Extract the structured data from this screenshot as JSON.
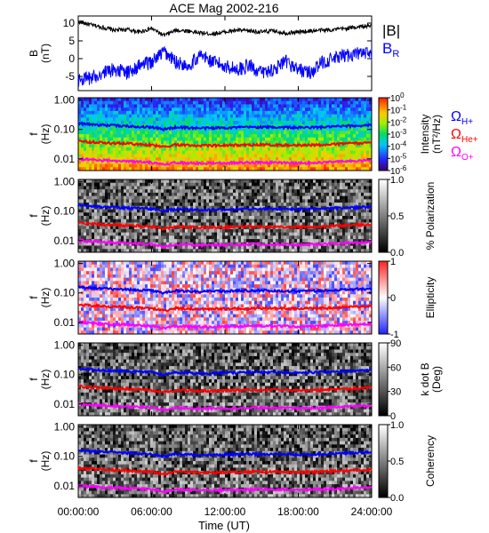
{
  "chart_data": {
    "type": "line",
    "title": "ACE Mag 2002-216",
    "xlabel": "Time (UT)",
    "x_ticks": [
      "00:00:00",
      "06:00:00",
      "12:00:00",
      "18:00:00",
      "24:00:00"
    ],
    "xlim_hours": [
      0,
      24
    ],
    "panels": [
      {
        "name": "field",
        "ylabel": [
          "B",
          "(nT)"
        ],
        "ylim": [
          -9,
          12
        ],
        "y_ticks": [
          "10",
          "5",
          "0",
          "-5"
        ],
        "y_tick_values": [
          10,
          5,
          0,
          -5
        ],
        "series": [
          {
            "name": "|B|",
            "color": "#000000",
            "x": [
              0,
              1,
              2,
              3,
              4,
              5,
              6,
              7,
              8,
              9,
              10,
              11,
              12,
              13,
              14,
              15,
              16,
              17,
              18,
              19,
              20,
              21,
              22,
              23,
              24
            ],
            "values": [
              10.5,
              9.5,
              8.8,
              8.0,
              8.2,
              7.5,
              8.5,
              6.5,
              8.0,
              7.8,
              7.2,
              7.0,
              7.5,
              8.0,
              7.8,
              7.5,
              7.8,
              7.2,
              7.5,
              7.8,
              8.0,
              8.2,
              8.5,
              9.0,
              9.2
            ]
          },
          {
            "name": "B_R",
            "label_main": "B",
            "label_sub": "R",
            "color": "#0000ff",
            "x": [
              0,
              1,
              2,
              3,
              4,
              5,
              6,
              7,
              8,
              9,
              10,
              11,
              12,
              13,
              14,
              15,
              16,
              17,
              18,
              19,
              20,
              21,
              22,
              23,
              24
            ],
            "values": [
              -6,
              -5.5,
              -4,
              -3,
              -4,
              -2,
              -1,
              2,
              -1,
              -2,
              1,
              -1,
              -2,
              -3,
              -2,
              -4,
              -3,
              -1,
              -3,
              -4,
              -1,
              0,
              1,
              1.5,
              1
            ]
          }
        ]
      },
      {
        "name": "intensity",
        "ylabel": [
          "f",
          "(Hz)"
        ],
        "colorbar_label": [
          "Intensity",
          "(nT²/Hz)"
        ],
        "colorbar_ticks": [
          {
            "base": "10",
            "exp": "0"
          },
          {
            "base": "10",
            "exp": "-1"
          },
          {
            "base": "10",
            "exp": "-2"
          },
          {
            "base": "10",
            "exp": "-3"
          },
          {
            "base": "10",
            "exp": "-4"
          },
          {
            "base": "10",
            "exp": "-5"
          },
          {
            "base": "10",
            "exp": "-6"
          }
        ],
        "colormap": "rainbow"
      },
      {
        "name": "polarization",
        "ylabel": [
          "f",
          "(Hz)"
        ],
        "colorbar_label": [
          "% Polarization"
        ],
        "colorbar_ticks": [
          "1.0",
          "0.5",
          "0.0"
        ],
        "colormap": "gray"
      },
      {
        "name": "ellipticity",
        "ylabel": [
          "f",
          "(Hz)"
        ],
        "colorbar_label": [
          "Ellipticity"
        ],
        "colorbar_ticks": [
          "1",
          "0",
          "-1"
        ],
        "colormap": "bluewhitered"
      },
      {
        "name": "kdotb",
        "ylabel": [
          "f",
          "(Hz)"
        ],
        "colorbar_label": [
          "k dot B",
          "(Deg)"
        ],
        "colorbar_ticks": [
          "90",
          "60",
          "30",
          "0"
        ],
        "colormap": "gray"
      },
      {
        "name": "coherency",
        "ylabel": [
          "f",
          "(Hz)"
        ],
        "colorbar_label": [
          "Coherency"
        ],
        "colorbar_ticks": [
          "1.0",
          "0.5",
          "0.0"
        ],
        "colormap": "gray"
      }
    ],
    "freq_axis": {
      "scale": "log",
      "ylim_hz": [
        0.004,
        1.2
      ],
      "y_ticks": [
        "1.00",
        "0.10",
        "0.01"
      ],
      "y_tick_values": [
        1.0,
        0.1,
        0.01
      ]
    },
    "gyrofrequency_lines": [
      {
        "name": "ΩH+",
        "symbol": "Ω",
        "sub": "H+",
        "color": "#0000ff",
        "x": [
          0,
          2,
          4,
          6,
          7,
          8,
          9,
          10,
          12,
          14,
          16,
          18,
          20,
          22,
          24
        ],
        "values_hz": [
          0.16,
          0.14,
          0.13,
          0.12,
          0.1,
          0.12,
          0.115,
          0.11,
          0.115,
          0.12,
          0.12,
          0.115,
          0.12,
          0.13,
          0.14
        ]
      },
      {
        "name": "ΩHe+",
        "symbol": "Ω",
        "sub": "He+",
        "color": "#ff0000",
        "x": [
          0,
          2,
          4,
          6,
          7,
          8,
          9,
          10,
          12,
          14,
          16,
          18,
          20,
          22,
          24
        ],
        "values_hz": [
          0.04,
          0.035,
          0.033,
          0.03,
          0.025,
          0.03,
          0.029,
          0.028,
          0.029,
          0.03,
          0.03,
          0.029,
          0.03,
          0.033,
          0.035
        ]
      },
      {
        "name": "ΩO+",
        "symbol": "Ω",
        "sub": "O+",
        "color": "#ff00ff",
        "x": [
          0,
          2,
          4,
          6,
          7,
          8,
          9,
          10,
          12,
          14,
          16,
          18,
          20,
          22,
          24
        ],
        "values_hz": [
          0.01,
          0.0088,
          0.0083,
          0.0075,
          0.0063,
          0.0075,
          0.0072,
          0.007,
          0.0072,
          0.0075,
          0.0075,
          0.0072,
          0.0075,
          0.0083,
          0.0088
        ]
      }
    ]
  }
}
